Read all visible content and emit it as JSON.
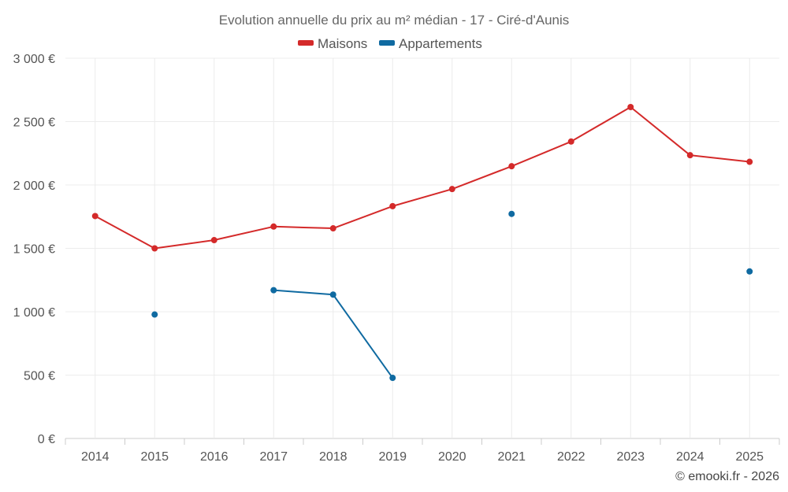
{
  "chart_data": {
    "type": "line",
    "title": "Evolution annuelle du prix au m² médian - 17 - Ciré-d'Aunis",
    "categories": [
      "2014",
      "2015",
      "2016",
      "2017",
      "2018",
      "2019",
      "2020",
      "2021",
      "2022",
      "2023",
      "2024",
      "2025"
    ],
    "ylim": [
      0,
      3000
    ],
    "yticks": [
      0,
      500,
      1000,
      1500,
      2000,
      2500,
      3000
    ],
    "ytick_labels": [
      "0 €",
      "500 €",
      "1 000 €",
      "1 500 €",
      "2 000 €",
      "2 500 €",
      "3 000 €"
    ],
    "legend_position": "top-center",
    "grid": true,
    "series": [
      {
        "name": "Maisons",
        "color": "#d42a2a",
        "values": [
          1755,
          1500,
          1565,
          1672,
          1658,
          1833,
          1968,
          2148,
          2343,
          2615,
          2235,
          2183
        ]
      },
      {
        "name": "Appartements",
        "color": "#0f6aa1",
        "values": [
          null,
          978,
          null,
          1170,
          1135,
          478,
          null,
          1772,
          null,
          null,
          null,
          1318
        ]
      }
    ],
    "credit": "© emooki.fr - 2026"
  }
}
